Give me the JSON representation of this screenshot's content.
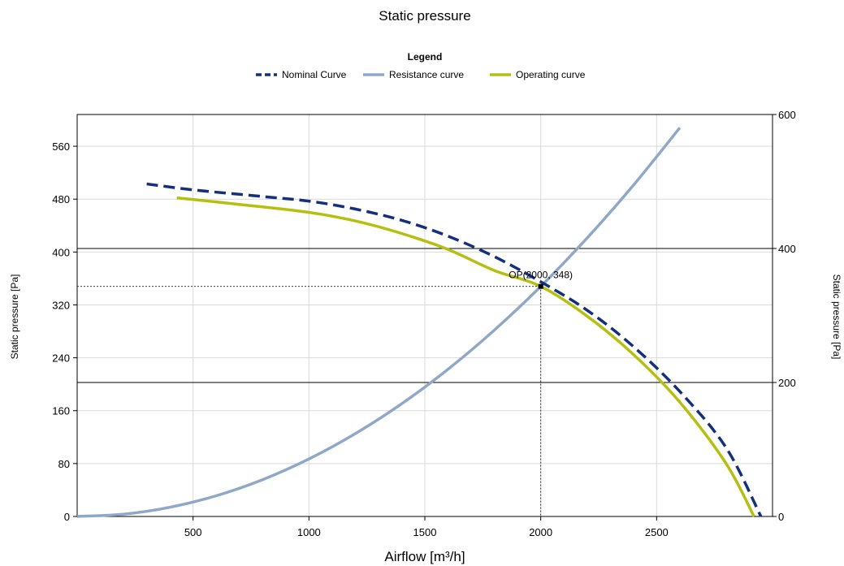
{
  "chart_data": {
    "type": "line",
    "title": "Static pressure",
    "legend": {
      "title": "Legend",
      "placement": "top-center",
      "entries": [
        {
          "label": "Nominal Curve",
          "color": "#14307a",
          "style": "dashed"
        },
        {
          "label": "Resistance curve",
          "color": "#8fa8c8",
          "style": "solid"
        },
        {
          "label": "Operating curve",
          "color": "#b5bf10",
          "style": "solid"
        }
      ]
    },
    "xlabel": "Airflow [m³/h]",
    "ylabel_left": "Static pressure [Pa]",
    "ylabel_right": "Static pressure [Pa]",
    "xlim": [
      0,
      3000
    ],
    "ylim_left": [
      0,
      608
    ],
    "ylim_right": [
      0,
      600
    ],
    "x_ticks": [
      500,
      1000,
      1500,
      2000,
      2500
    ],
    "y_ticks_left": [
      0,
      80,
      160,
      240,
      320,
      400,
      480,
      560
    ],
    "y_ticks_right": [
      0,
      200,
      400,
      600
    ],
    "grid": true,
    "series": [
      {
        "name": "Nominal Curve",
        "color": "#14307a",
        "dash": true,
        "x": [
          300,
          500,
          800,
          1000,
          1200,
          1400,
          1600,
          1800,
          2000,
          2200,
          2400,
          2600,
          2800,
          2950
        ],
        "y": [
          503,
          494,
          484,
          477,
          465,
          448,
          424,
          393,
          355,
          312,
          257,
          189,
          104,
          0
        ]
      },
      {
        "name": "Resistance curve",
        "color": "#8fa8c8",
        "dash": false,
        "x": [
          0,
          200,
          400,
          600,
          800,
          1000,
          1200,
          1400,
          1600,
          1800,
          2000,
          2200,
          2400,
          2600
        ],
        "y": [
          0,
          3.5,
          13.9,
          31.3,
          55.7,
          87,
          125.3,
          170.5,
          222.7,
          281.9,
          348,
          421.1,
          501.1,
          588
        ]
      },
      {
        "name": "Operating curve",
        "color": "#b5bf10",
        "dash": false,
        "x": [
          430,
          700,
          1000,
          1200,
          1400,
          1600,
          1800,
          2000,
          2200,
          2400,
          2600,
          2800,
          2920
        ],
        "y": [
          482,
          472,
          460,
          447,
          428,
          404,
          372,
          348,
          303,
          245,
          173,
          80,
          0
        ]
      }
    ],
    "operating_point": {
      "x": 2000,
      "y": 348,
      "label": "OP(2000, 348)"
    },
    "right_axis_lines": [
      200,
      400
    ]
  }
}
